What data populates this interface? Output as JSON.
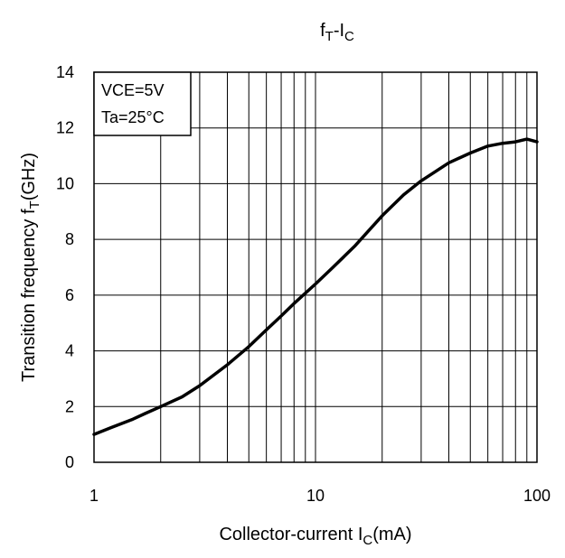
{
  "chart_data": {
    "type": "line",
    "title": "fT-IC",
    "title_parts": {
      "main": "f",
      "sub": "T",
      "sep": "-I",
      "sub2": "C"
    },
    "xlabel": "Collector-current IC(mA)",
    "xlabel_parts": {
      "pre": "Collector-current I",
      "sub": "C",
      "post": "(mA)"
    },
    "ylabel": "Transition frequency fT(GHz)",
    "ylabel_parts": {
      "pre": "Transition frequency f",
      "sub": "T",
      "post": "(GHz)"
    },
    "x_scale": "log",
    "xlim": [
      1,
      100
    ],
    "ylim": [
      0,
      14
    ],
    "x_ticks": [
      "1",
      "10",
      "100"
    ],
    "y_ticks": [
      "0",
      "2",
      "4",
      "6",
      "8",
      "10",
      "12",
      "14"
    ],
    "grid": true,
    "conditions": [
      "VCE=5V",
      "Ta=25°C"
    ],
    "series": [
      {
        "x": [
          1,
          1.2,
          1.5,
          1.7,
          2,
          2.5,
          3,
          4,
          5,
          6,
          7,
          8,
          10,
          12,
          15,
          20,
          25,
          30,
          40,
          50,
          60,
          70,
          80,
          90,
          100
        ],
        "y": [
          1.0,
          1.25,
          1.55,
          1.75,
          2.0,
          2.35,
          2.75,
          3.5,
          4.15,
          4.75,
          5.25,
          5.7,
          6.4,
          7.0,
          7.75,
          8.85,
          9.6,
          10.1,
          10.75,
          11.1,
          11.35,
          11.45,
          11.5,
          11.6,
          11.5
        ]
      }
    ],
    "colors": {
      "line": "#000000",
      "grid": "#000000"
    }
  }
}
